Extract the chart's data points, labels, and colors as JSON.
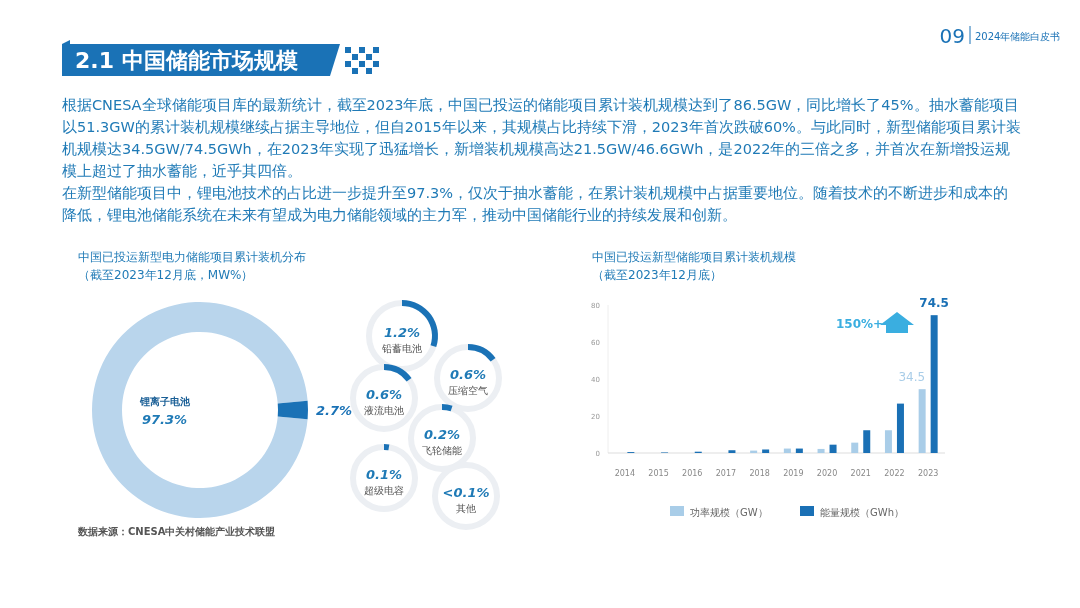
{
  "chart_data": [
    {
      "type": "other",
      "title": "2.1 中国储能市场规模",
      "annotations": [
        "09",
        "2024年储能白皮书",
        "根据CNESA全球储能项目库的最新统计，截至2023年底，中国已投运的储能项目累计装机规模达到了86.5GW，同比增长了45%。抽水蓄能项目以51.3GW的累计装机规模继续占据主导地位，但自2015年以来，其规模占比持续下滑，2023年首次跌破60%。与此同时，新型储能项目累计装机规模达34.5GW/74.5GWh，在2023年实现了迅猛增长，新增装机规模高达21.5GW/46.6GWh，是2022年的三倍之多，并首次在新增投运规模上超过了抽水蓄能，近乎其四倍。",
        "在新型储能项目中，锂电池技术的占比进一步提升至97.3%，仅次于抽水蓄能，在累计装机规模中占据重要地位。随着技术的不断进步和成本的降低，锂电池储能系统在未来有望成为电力储能领域的主力军，推动中国储能行业的持续发展和创新。"
      ]
    },
    {
      "type": "donut",
      "title": "中国已投运新型电力储能项目累计装机分布",
      "subtitle": "（截至2023年12月底，MW%）",
      "categories": [
        "锂离子电池",
        null
      ],
      "values": [
        97.3,
        2.7
      ],
      "colors": [
        "#b9d5ec",
        "#1a72b6"
      ],
      "value_labels": [
        "97.3%",
        "2.7%"
      ],
      "annotations": [
        "数据来源：CNESA中关村储能产业技术联盟"
      ]
    },
    {
      "type": "other",
      "categories": [
        "铅蓄电池",
        "压缩空气",
        "液流电池",
        "飞轮储能",
        "超级电容",
        "其他"
      ],
      "values": [
        1.2,
        0.6,
        0.6,
        0.2,
        0.1,
        null
      ],
      "value_labels": [
        "1.2%",
        "0.6%",
        "0.6%",
        "0.2%",
        "0.1%",
        "<0.1%"
      ],
      "color": "#1a72b6"
    },
    {
      "type": "bar",
      "title": "中国已投运新型储能项目累计装机规模",
      "subtitle": "（截至2023年12月底）",
      "categories": [
        "2014",
        "2015",
        "2016",
        "2017",
        "2018",
        "2019",
        "2020",
        "2021",
        "2022",
        "2023"
      ],
      "series": [
        {
          "name": "功率规模（GW）",
          "color": "#a9cde8",
          "values": [
            null,
            null,
            null,
            null,
            1.3,
            2.4,
            2.2,
            5.6,
            12.3,
            34.5
          ],
          "value_labels": [
            null,
            null,
            null,
            null,
            null,
            null,
            null,
            null,
            null,
            "34.5"
          ]
        },
        {
          "name": "能量规模（GWh）",
          "color": "#1a70b5",
          "values": [
            0.5,
            0.3,
            0.7,
            1.5,
            1.9,
            2.4,
            4.5,
            12.3,
            26.7,
            74.5
          ],
          "value_labels": [
            null,
            null,
            null,
            null,
            null,
            null,
            null,
            null,
            null,
            "74.5"
          ]
        }
      ],
      "ylim": [
        0,
        80
      ],
      "yticks": [
        0,
        20,
        40,
        60,
        80
      ],
      "legend": "bottom",
      "grid": false,
      "annotations": [
        "150%+"
      ]
    }
  ]
}
